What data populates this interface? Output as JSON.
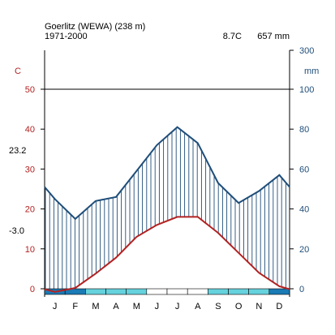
{
  "station": {
    "name": "Goerlitz (WEWA) (238 m)",
    "period": "1971-2000",
    "mean_temp": "8.7C",
    "annual_precip": "657 mm"
  },
  "chart_data": {
    "type": "line",
    "title": "Goerlitz (WEWA) (238 m)",
    "categories": [
      "J",
      "F",
      "M",
      "A",
      "M",
      "J",
      "J",
      "A",
      "S",
      "O",
      "N",
      "D"
    ],
    "y_left": {
      "label": "C",
      "range": [
        0,
        60
      ],
      "ticks": [
        "0",
        "10",
        "20",
        "30",
        "40",
        "50"
      ]
    },
    "y_right": {
      "label": "mm",
      "range": [
        0,
        300
      ],
      "ticks": [
        "0",
        "20",
        "40",
        "60",
        "80",
        "100",
        "300"
      ]
    },
    "series": [
      {
        "name": "temperature",
        "axis": "left",
        "color": "#b22222",
        "values": [
          -0.8,
          0.2,
          3.8,
          7.8,
          13.0,
          16.0,
          18.0,
          18.0,
          14.0,
          9.0,
          4.0,
          0.6
        ]
      },
      {
        "name": "precipitation",
        "axis": "right",
        "color": "#1f4e79",
        "values": [
          45,
          35,
          44,
          46,
          59,
          72,
          81,
          73,
          53,
          43,
          49,
          57
        ]
      }
    ],
    "extremes": {
      "max_label": "23.2",
      "min_label": "-3.0"
    },
    "frost_bars": [
      {
        "color": "#1a7bb5"
      },
      {
        "color": "#1a7bb5"
      },
      {
        "color": "#66d2dd"
      },
      {
        "color": "#66d2dd"
      },
      {
        "color": "#66d2dd"
      },
      {
        "color": "#ffffff"
      },
      {
        "color": "#ffffff"
      },
      {
        "color": "#ffffff"
      },
      {
        "color": "#66d2dd"
      },
      {
        "color": "#66d2dd"
      },
      {
        "color": "#66d2dd"
      },
      {
        "color": "#1a7bb5"
      }
    ],
    "grid": false,
    "legend": "none"
  },
  "colors": {
    "temp": "#b22222",
    "precip": "#1f4e79",
    "axis": "#000000"
  }
}
